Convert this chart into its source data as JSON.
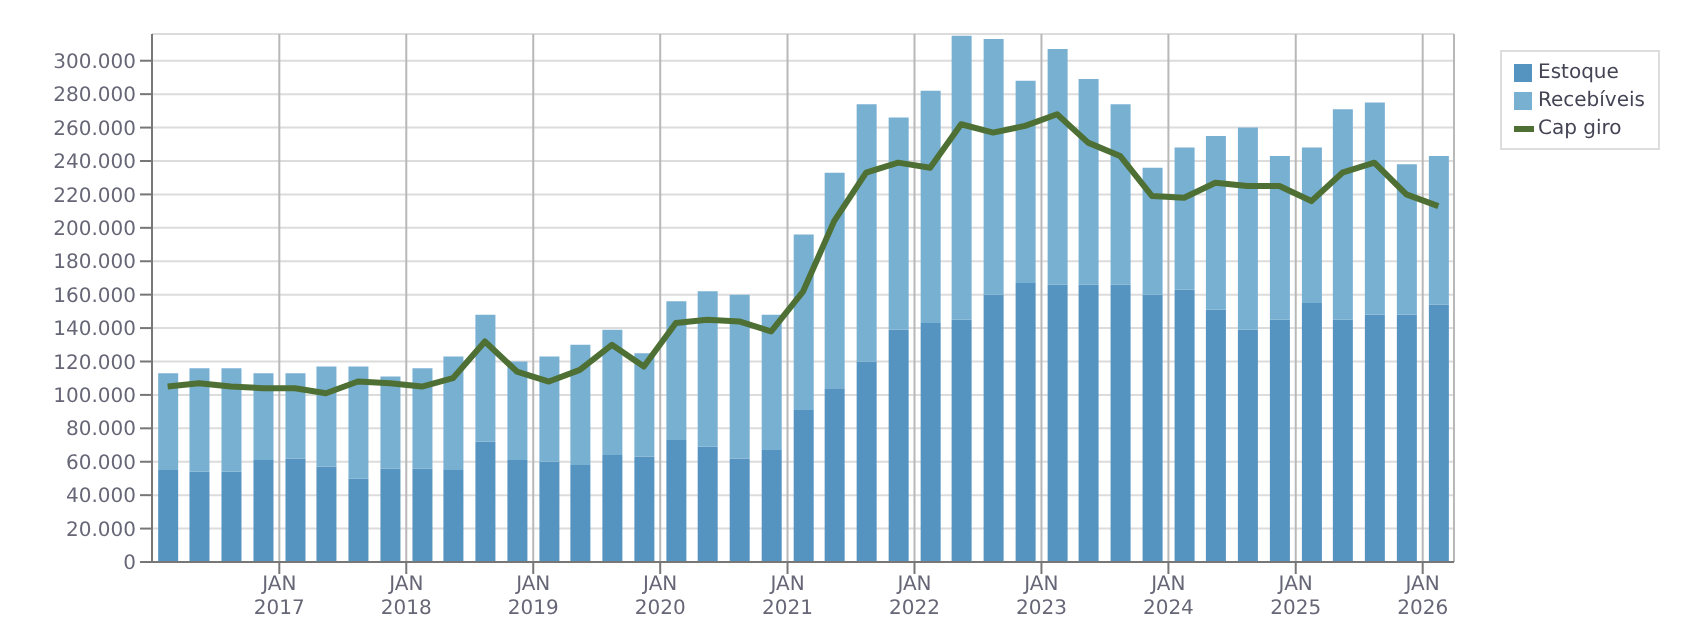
{
  "chart_data": {
    "type": "bar",
    "stacked": true,
    "grid": true,
    "legend": "top right",
    "x": [
      "2016-02-15",
      "2016-05-15",
      "2016-08-15",
      "2016-11-15",
      "2017-02-15",
      "2017-05-15",
      "2017-08-15",
      "2017-11-15",
      "2018-02-15",
      "2018-05-15",
      "2018-08-15",
      "2018-11-15",
      "2019-02-15",
      "2019-05-15",
      "2019-08-15",
      "2019-11-15",
      "2020-02-15",
      "2020-05-15",
      "2020-08-15",
      "2020-11-15",
      "2021-02-15",
      "2021-05-15",
      "2021-08-15",
      "2021-11-15",
      "2022-02-15",
      "2022-05-15",
      "2022-08-15",
      "2022-11-15",
      "2023-02-15",
      "2023-05-15",
      "2023-08-15",
      "2023-11-15",
      "2024-02-15",
      "2024-05-15",
      "2024-08-15",
      "2024-11-15",
      "2025-02-15",
      "2025-05-15",
      "2025-08-15",
      "2025-11-15",
      "2026-02-15"
    ],
    "xlim": [
      "2016-01-01",
      "2026-04-01"
    ],
    "xticks": [
      {
        "value": "2017-01-01",
        "label": "JAN\n2017"
      },
      {
        "value": "2018-01-01",
        "label": "JAN\n2018"
      },
      {
        "value": "2019-01-01",
        "label": "JAN\n2019"
      },
      {
        "value": "2020-01-01",
        "label": "JAN\n2020"
      },
      {
        "value": "2021-01-01",
        "label": "JAN\n2021"
      },
      {
        "value": "2022-01-01",
        "label": "JAN\n2022"
      },
      {
        "value": "2023-01-01",
        "label": "JAN\n2023"
      },
      {
        "value": "2024-01-01",
        "label": "JAN\n2024"
      },
      {
        "value": "2025-01-01",
        "label": "JAN\n2025"
      },
      {
        "value": "2026-01-01",
        "label": "JAN\n2026"
      }
    ],
    "ylim": [
      0,
      316000
    ],
    "yticks": [
      0,
      {
        "value": 20000,
        "label": "20.000"
      },
      {
        "value": 40000,
        "label": "40.000"
      },
      {
        "value": 60000,
        "label": "60.000"
      },
      {
        "value": 80000,
        "label": "80.000"
      },
      {
        "value": 100000,
        "label": "100.000"
      },
      {
        "value": 120000,
        "label": "120.000"
      },
      {
        "value": 140000,
        "label": "140.000"
      },
      {
        "value": 160000,
        "label": "160.000"
      },
      {
        "value": 180000,
        "label": "180.000"
      },
      {
        "value": 200000,
        "label": "200.000"
      },
      {
        "value": 220000,
        "label": "220.000"
      },
      {
        "value": 240000,
        "label": "240.000"
      },
      {
        "value": 260000,
        "label": "260.000"
      },
      {
        "value": 280000,
        "label": "280.000"
      },
      {
        "value": 300000,
        "label": "300.000"
      }
    ],
    "series": [
      {
        "name": "Estoque",
        "color": "#5593c0",
        "values": [
          55000,
          54000,
          54000,
          61000,
          62000,
          57000,
          50000,
          56000,
          56000,
          55000,
          72000,
          61000,
          60000,
          58000,
          64000,
          63000,
          73000,
          69000,
          62000,
          67000,
          91000,
          104000,
          120000,
          139000,
          143000,
          145000,
          160000,
          167000,
          166000,
          166000,
          166000,
          160000,
          163000,
          151000,
          139000,
          145000,
          155000,
          145000,
          148000,
          148000,
          154000
        ]
      },
      {
        "name": "Recebíveis",
        "color": "#78b0d2",
        "values": [
          58000,
          62000,
          62000,
          52000,
          51000,
          60000,
          67000,
          55000,
          60000,
          68000,
          76000,
          59000,
          63000,
          72000,
          75000,
          62000,
          83000,
          93000,
          98000,
          81000,
          105000,
          129000,
          154000,
          127000,
          139000,
          170000,
          153000,
          121000,
          141000,
          123000,
          108000,
          76000,
          85000,
          104000,
          121000,
          98000,
          93000,
          126000,
          127000,
          90000,
          89000
        ]
      },
      {
        "name": "Cap giro",
        "type": "line",
        "color": "#4e7035",
        "values": [
          105000,
          107000,
          105000,
          104000,
          104000,
          101000,
          108000,
          107000,
          105000,
          110000,
          132000,
          114000,
          108000,
          115000,
          130000,
          117000,
          143000,
          145000,
          144000,
          138000,
          162000,
          204000,
          233000,
          239000,
          236000,
          262000,
          257000,
          261000,
          268000,
          251000,
          243000,
          219000,
          218000,
          227000,
          225000,
          225000,
          216000,
          233000,
          239000,
          220000,
          213000
        ]
      }
    ]
  }
}
